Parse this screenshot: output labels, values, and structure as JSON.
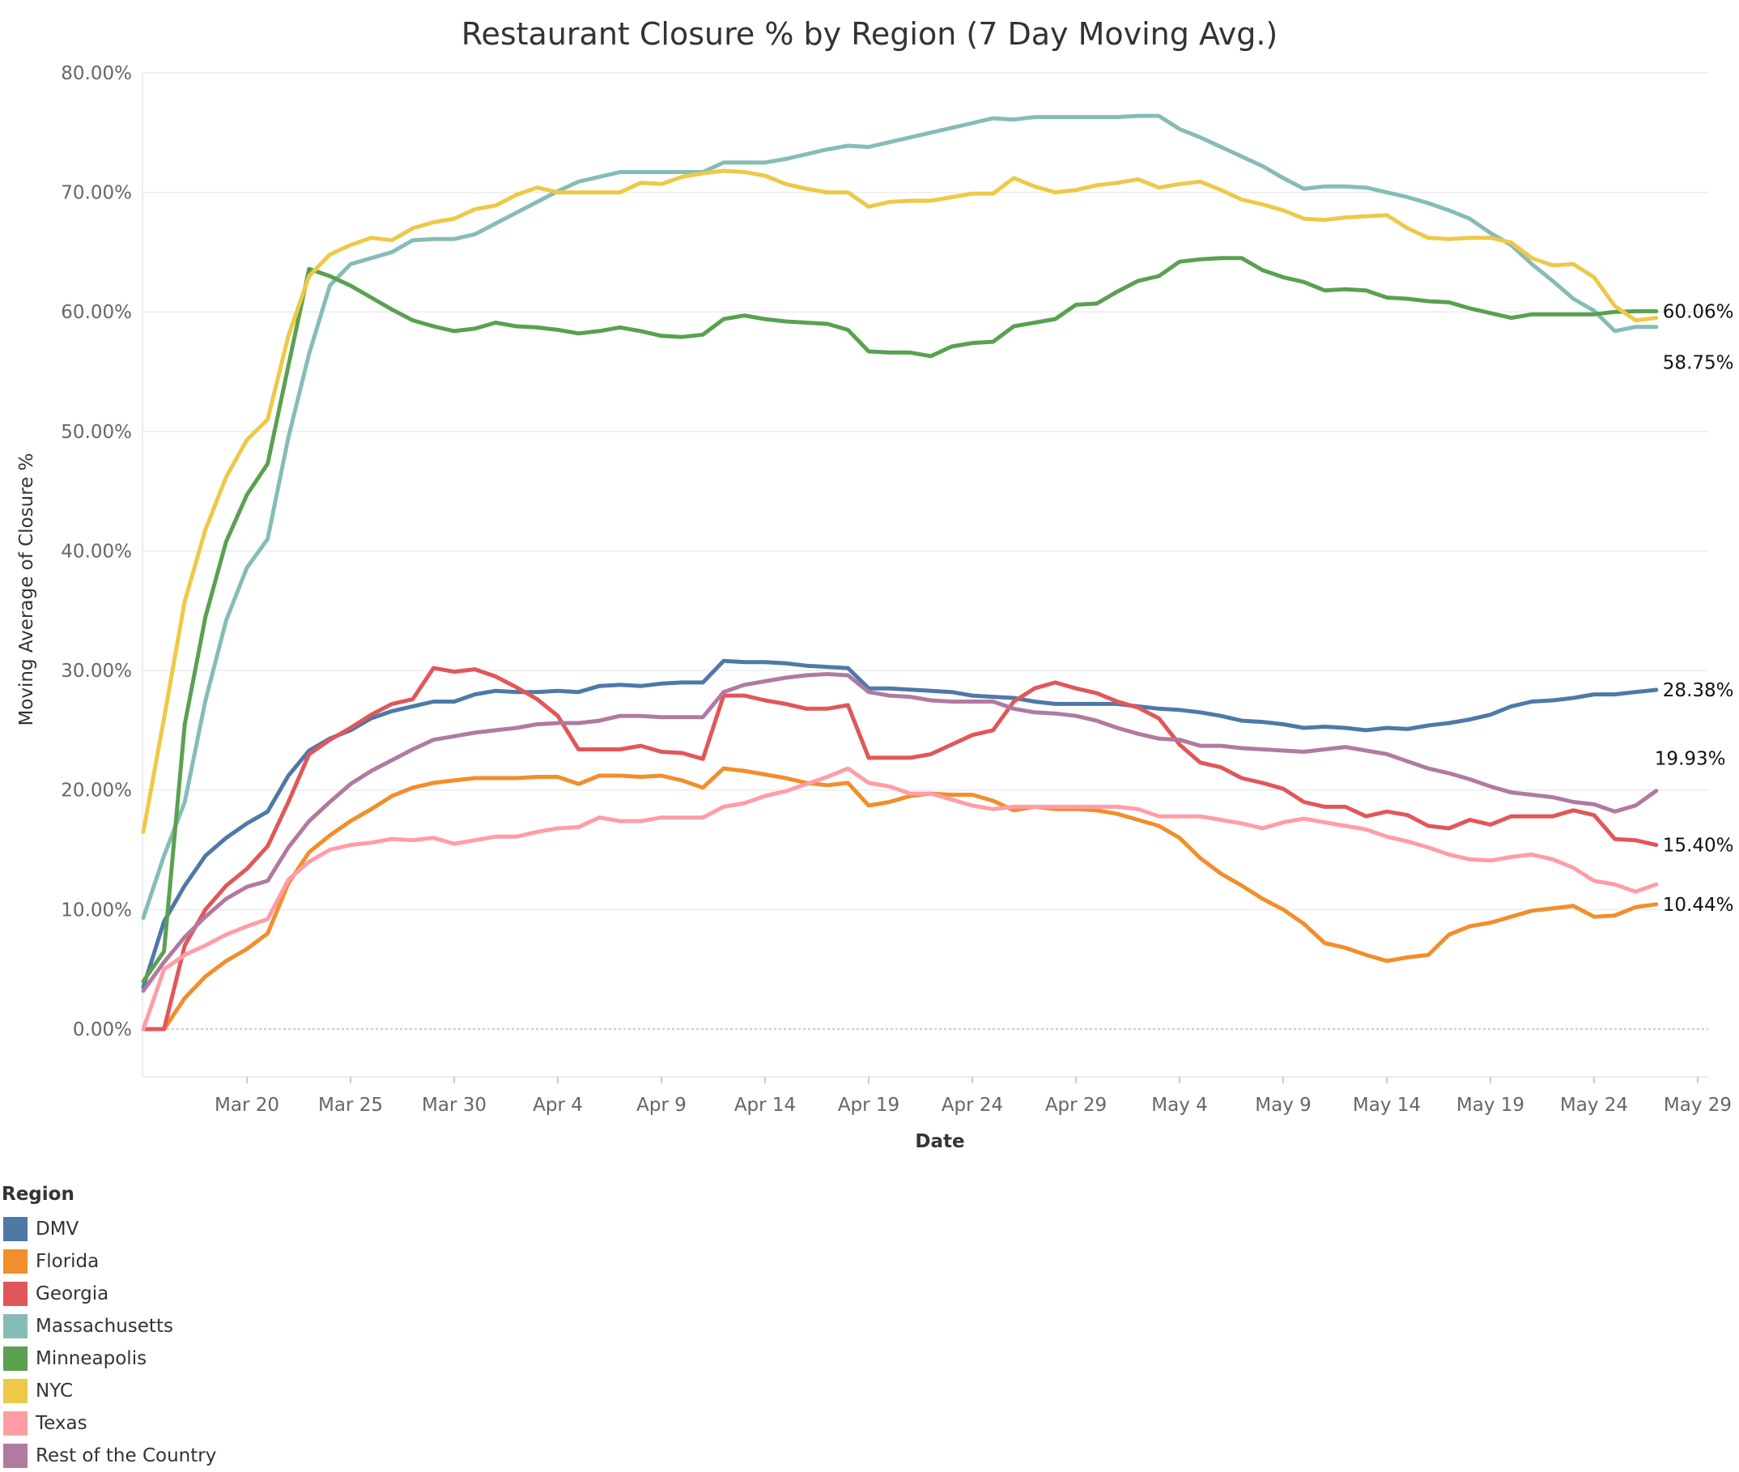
{
  "chart_data": {
    "type": "line",
    "title": "Restaurant Closure % by Region (7 Day Moving Avg.)",
    "xlabel": "Date",
    "ylabel": "Moving Average of Closure %",
    "ylim": [
      -4,
      80
    ],
    "y_ticks": [
      "80.00%",
      "70.00%",
      "60.00%",
      "50.00%",
      "40.00%",
      "30.00%",
      "20.00%",
      "10.00%",
      "0.00%"
    ],
    "x_ticks": [
      "Mar 20",
      "Mar 25",
      "Mar 30",
      "Apr 4",
      "Apr 9",
      "Apr 14",
      "Apr 19",
      "Apr 24",
      "Apr 29",
      "May 4",
      "May 9",
      "May 14",
      "May 19",
      "May 24",
      "May 29"
    ],
    "x_start": "Mar 15",
    "legend_title": "Region",
    "legend_position": "bottom-left",
    "grid": "horizontal",
    "series": [
      {
        "name": "DMV",
        "color": "#4e79a7",
        "end_label": "28.38%",
        "values": [
          3.5,
          9,
          12,
          14.5,
          16,
          17.2,
          18.2,
          21.2,
          23.3,
          24.3,
          25,
          26,
          26.6,
          27,
          27.4,
          27.4,
          28,
          28.3,
          28.2,
          28.2,
          28.3,
          28.2,
          28.7,
          28.8,
          28.7,
          28.9,
          29,
          29,
          30.8,
          30.7,
          30.7,
          30.6,
          30.4,
          30.3,
          30.2,
          28.5,
          28.5,
          28.4,
          28.3,
          28.2,
          27.9,
          27.8,
          27.7,
          27.4,
          27.2,
          27.2,
          27.2,
          27.2,
          27,
          26.8,
          26.7,
          26.5,
          26.2,
          25.8,
          25.7,
          25.5,
          25.2,
          25.3,
          25.2,
          25,
          25.2,
          25.1,
          25.4,
          25.6,
          25.9,
          26.3,
          27,
          27.4,
          27.5,
          27.7,
          28,
          28,
          28.2,
          28.38
        ]
      },
      {
        "name": "Florida",
        "color": "#f28e2b",
        "end_label": "10.44%",
        "values": [
          0,
          0,
          2.6,
          4.4,
          5.7,
          6.7,
          8,
          12.2,
          14.8,
          16.2,
          17.4,
          18.4,
          19.5,
          20.2,
          20.6,
          20.8,
          21,
          21,
          21,
          21.1,
          21.1,
          20.5,
          21.2,
          21.2,
          21.1,
          21.2,
          20.8,
          20.2,
          21.8,
          21.6,
          21.3,
          21,
          20.6,
          20.4,
          20.6,
          18.7,
          19,
          19.5,
          19.7,
          19.6,
          19.6,
          19.1,
          18.3,
          18.6,
          18.4,
          18.4,
          18.3,
          18,
          17.5,
          17,
          16,
          14.3,
          13,
          12,
          10.9,
          10,
          8.8,
          7.2,
          6.8,
          6.2,
          5.7,
          6,
          6.2,
          7.9,
          8.6,
          8.9,
          9.4,
          9.9,
          10.1,
          10.3,
          9.4,
          9.5,
          10.2,
          10.44
        ]
      },
      {
        "name": "Georgia",
        "color": "#e15759",
        "end_label": "15.40%",
        "values": [
          0,
          0,
          7,
          10,
          12,
          13.4,
          15.3,
          19,
          23,
          24.2,
          25.2,
          26.3,
          27.2,
          27.6,
          30.2,
          29.9,
          30.1,
          29.5,
          28.6,
          27.6,
          26.2,
          23.4,
          23.4,
          23.4,
          23.7,
          23.2,
          23.1,
          22.6,
          27.9,
          27.9,
          27.5,
          27.2,
          26.8,
          26.8,
          27.1,
          22.7,
          22.7,
          22.7,
          23,
          23.8,
          24.6,
          25,
          27.4,
          28.5,
          29,
          28.5,
          28.1,
          27.4,
          26.9,
          26,
          23.8,
          22.3,
          21.9,
          21,
          20.6,
          20.1,
          19,
          18.6,
          18.6,
          17.8,
          18.2,
          17.9,
          17,
          16.8,
          17.5,
          17.1,
          17.8,
          17.8,
          17.8,
          18.3,
          17.9,
          15.9,
          15.8,
          15.4
        ]
      },
      {
        "name": "Massachusetts",
        "color": "#86bcb6",
        "end_label": "58.75%",
        "values": [
          9.3,
          14.5,
          19,
          27.5,
          34.2,
          38.6,
          41,
          49.5,
          56.5,
          62.2,
          64,
          64.5,
          65,
          66,
          66.1,
          66.1,
          66.5,
          67.4,
          68.3,
          69.2,
          70.1,
          70.9,
          71.3,
          71.7,
          71.7,
          71.7,
          71.7,
          71.7,
          72.5,
          72.5,
          72.5,
          72.8,
          73.2,
          73.6,
          73.9,
          73.8,
          74.2,
          74.6,
          75,
          75.4,
          75.8,
          76.2,
          76.1,
          76.3,
          76.3,
          76.3,
          76.3,
          76.3,
          76.4,
          76.4,
          75.3,
          74.6,
          73.8,
          73,
          72.2,
          71.2,
          70.3,
          70.5,
          70.5,
          70.4,
          70,
          69.6,
          69.1,
          68.5,
          67.8,
          66.6,
          65.6,
          64,
          62.6,
          61.1,
          60.1,
          58.4,
          58.75,
          58.75
        ]
      },
      {
        "name": "Minneapolis",
        "color": "#59a14f",
        "end_label": "60.06%",
        "values": [
          4,
          6.5,
          25.5,
          34.5,
          40.8,
          44.7,
          47.3,
          55.5,
          63.6,
          63,
          62.2,
          61.2,
          60.2,
          59.3,
          58.8,
          58.4,
          58.6,
          59.1,
          58.8,
          58.7,
          58.5,
          58.2,
          58.4,
          58.7,
          58.4,
          58,
          57.9,
          58.1,
          59.4,
          59.7,
          59.4,
          59.2,
          59.1,
          59,
          58.5,
          56.7,
          56.6,
          56.6,
          56.3,
          57.1,
          57.4,
          57.5,
          58.8,
          59.1,
          59.4,
          60.6,
          60.7,
          61.7,
          62.6,
          63,
          64.2,
          64.4,
          64.5,
          64.5,
          63.5,
          62.9,
          62.5,
          61.8,
          61.9,
          61.8,
          61.2,
          61.1,
          60.9,
          60.8,
          60.3,
          59.9,
          59.5,
          59.8,
          59.8,
          59.8,
          59.8,
          60,
          60.06,
          60.06
        ]
      },
      {
        "name": "NYC",
        "color": "#edc948",
        "end_label": "",
        "values": [
          16.5,
          26,
          35.8,
          41.8,
          46.2,
          49.3,
          51,
          58,
          63,
          64.8,
          65.6,
          66.2,
          66,
          67,
          67.5,
          67.8,
          68.6,
          68.9,
          69.8,
          70.4,
          70,
          70,
          70,
          70,
          70.8,
          70.7,
          71.3,
          71.6,
          71.8,
          71.7,
          71.4,
          70.7,
          70.3,
          70,
          70,
          68.8,
          69.2,
          69.3,
          69.3,
          69.6,
          69.9,
          69.9,
          71.2,
          70.5,
          70,
          70.2,
          70.6,
          70.8,
          71.1,
          70.4,
          70.7,
          70.9,
          70.2,
          69.4,
          69,
          68.5,
          67.8,
          67.7,
          67.9,
          68,
          68.1,
          67,
          66.2,
          66.1,
          66.2,
          66.2,
          65.8,
          64.5,
          63.9,
          64,
          62.9,
          60.5,
          59.3,
          59.5
        ]
      },
      {
        "name": "Texas",
        "color": "#ff9da7",
        "end_label": "",
        "values": [
          0,
          5,
          6.2,
          7,
          7.9,
          8.6,
          9.2,
          12.5,
          14,
          15,
          15.4,
          15.6,
          15.9,
          15.8,
          16,
          15.5,
          15.8,
          16.1,
          16.1,
          16.5,
          16.8,
          16.9,
          17.7,
          17.4,
          17.4,
          17.7,
          17.7,
          17.7,
          18.6,
          18.9,
          19.5,
          19.9,
          20.5,
          21.1,
          21.8,
          20.6,
          20.3,
          19.7,
          19.7,
          19.2,
          18.7,
          18.4,
          18.6,
          18.6,
          18.6,
          18.6,
          18.6,
          18.6,
          18.4,
          17.8,
          17.8,
          17.8,
          17.5,
          17.2,
          16.8,
          17.3,
          17.6,
          17.3,
          17,
          16.7,
          16.1,
          15.7,
          15.2,
          14.6,
          14.2,
          14.1,
          14.4,
          14.6,
          14.2,
          13.5,
          12.4,
          12.1,
          11.5,
          12.1
        ]
      },
      {
        "name": "Rest of the Country",
        "color": "#b07aa1",
        "end_label": "19.93%",
        "values": [
          3.2,
          5.6,
          7.7,
          9.4,
          10.9,
          11.9,
          12.4,
          15.2,
          17.4,
          19,
          20.5,
          21.6,
          22.5,
          23.4,
          24.2,
          24.5,
          24.8,
          25,
          25.2,
          25.5,
          25.6,
          25.6,
          25.8,
          26.2,
          26.2,
          26.1,
          26.1,
          26.1,
          28.2,
          28.8,
          29.1,
          29.4,
          29.6,
          29.7,
          29.6,
          28.2,
          27.9,
          27.8,
          27.5,
          27.4,
          27.4,
          27.4,
          26.8,
          26.5,
          26.4,
          26.2,
          25.8,
          25.2,
          24.7,
          24.3,
          24.2,
          23.7,
          23.7,
          23.5,
          23.4,
          23.3,
          23.2,
          23.4,
          23.6,
          23.3,
          23,
          22.4,
          21.8,
          21.4,
          20.9,
          20.3,
          19.8,
          19.6,
          19.4,
          19,
          18.8,
          18.2,
          18.7,
          19.93
        ]
      }
    ]
  }
}
